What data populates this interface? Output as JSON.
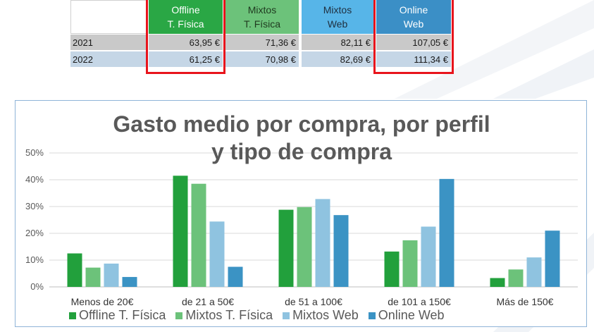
{
  "table": {
    "headers": [
      {
        "line1": "Offline",
        "line2": "T. Física"
      },
      {
        "line1": "Mixtos",
        "line2": "T. Física"
      },
      {
        "line1": "Mixtos",
        "line2": "Web"
      },
      {
        "line1": "Online",
        "line2": "Web"
      }
    ],
    "rows": [
      {
        "year": "2021",
        "values": [
          "63,95 €",
          "71,36 €",
          "82,11 €",
          "107,05 €"
        ]
      },
      {
        "year": "2022",
        "values": [
          "61,25 €",
          "70,98 €",
          "82,69 €",
          "111,34 €"
        ]
      }
    ],
    "highlight_color": "#e8141c"
  },
  "chart_data": {
    "type": "bar",
    "title_line1": "Gasto medio por  compra, por perfil",
    "title_line2": "y tipo de compra",
    "xlabel": "",
    "ylabel": "",
    "ylim": [
      0,
      50
    ],
    "yticks": [
      "0%",
      "10%",
      "20%",
      "30%",
      "40%",
      "50%"
    ],
    "grid": true,
    "legend_position": "bottom",
    "categories": [
      "Menos de 20€",
      "de 21 a 50€",
      "de 51 a 100€",
      "de 101 a 150€",
      "Más de 150€"
    ],
    "series": [
      {
        "name": "Offline T. Física",
        "color": "#22a03c",
        "values": [
          12.5,
          41.5,
          28.8,
          13.2,
          3.3
        ]
      },
      {
        "name": "Mixtos T. Física",
        "color": "#6cc27a",
        "values": [
          7.2,
          38.5,
          29.8,
          17.4,
          6.5
        ]
      },
      {
        "name": "Mixtos Web",
        "color": "#8fc3e0",
        "values": [
          8.7,
          24.4,
          32.8,
          22.5,
          11.0
        ]
      },
      {
        "name": "Online Web",
        "color": "#3b93c4",
        "values": [
          3.7,
          7.5,
          26.8,
          40.3,
          21.0
        ]
      }
    ]
  }
}
